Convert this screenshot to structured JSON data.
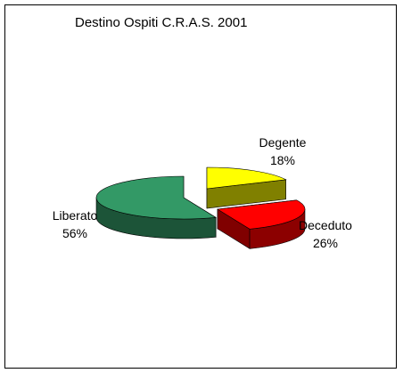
{
  "chart_data": {
    "type": "pie",
    "title": "Destino Ospiti C.R.A.S. 2001",
    "three_d": true,
    "exploded": true,
    "slices": [
      {
        "name": "Degente",
        "value": 18,
        "label": "18%",
        "color": "#ffff00"
      },
      {
        "name": "Deceduto",
        "value": 26,
        "label": "26%",
        "color": "#ff0000"
      },
      {
        "name": "Liberato",
        "value": 56,
        "label": "56%",
        "color": "#339966"
      }
    ],
    "legend": "none"
  }
}
